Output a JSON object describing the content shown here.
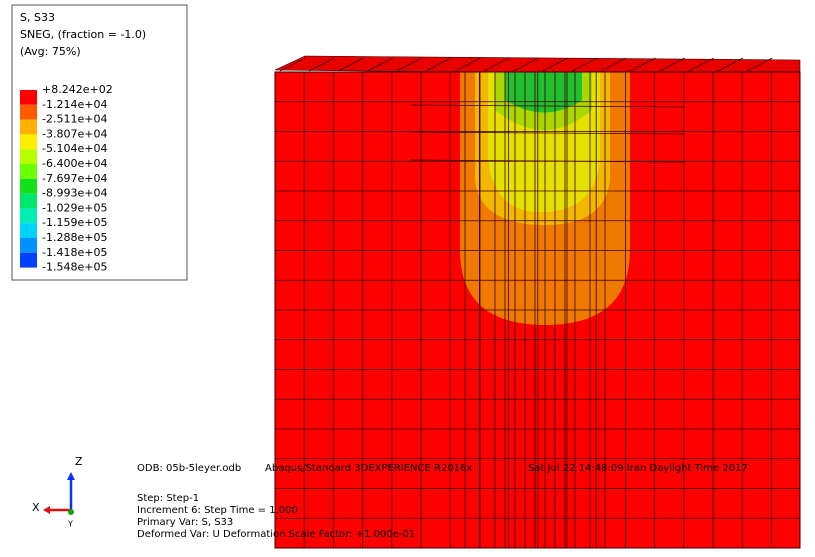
{
  "legend": {
    "title_lines": [
      "S, S33",
      "SNEG, (fraction = -1.0)",
      "(Avg: 75%)"
    ],
    "labels": [
      "+8.242e+02",
      "-1.214e+04",
      "-2.511e+04",
      "-3.807e+04",
      "-5.104e+04",
      "-6.400e+04",
      "-7.697e+04",
      "-8.993e+04",
      "-1.029e+05",
      "-1.159e+05",
      "-1.288e+05",
      "-1.418e+05",
      "-1.548e+05"
    ],
    "colors": [
      "#ff0000",
      "#ff5a00",
      "#ffb000",
      "#ffee00",
      "#b8ff00",
      "#6cff00",
      "#14e01a",
      "#00e66a",
      "#00f0b4",
      "#00d2ff",
      "#0090ff",
      "#0040ff"
    ]
  },
  "info": {
    "odb": "ODB: 05b-5leyer.odb",
    "solver": "Abaqus/Standard 3DEXPERIENCE R2016x",
    "date": "Sat Jul 22 14:48:09 Iran Daylight Time 2017",
    "lines": [
      "Step: Step-1",
      "Increment     6: Step Time =     1.000",
      "Primary Var: S, S33",
      "Deformed Var: U   Deformation Scale Factor: +1.000e-01"
    ]
  },
  "triad": {
    "z": "Z",
    "x": "X",
    "y": "Y"
  }
}
